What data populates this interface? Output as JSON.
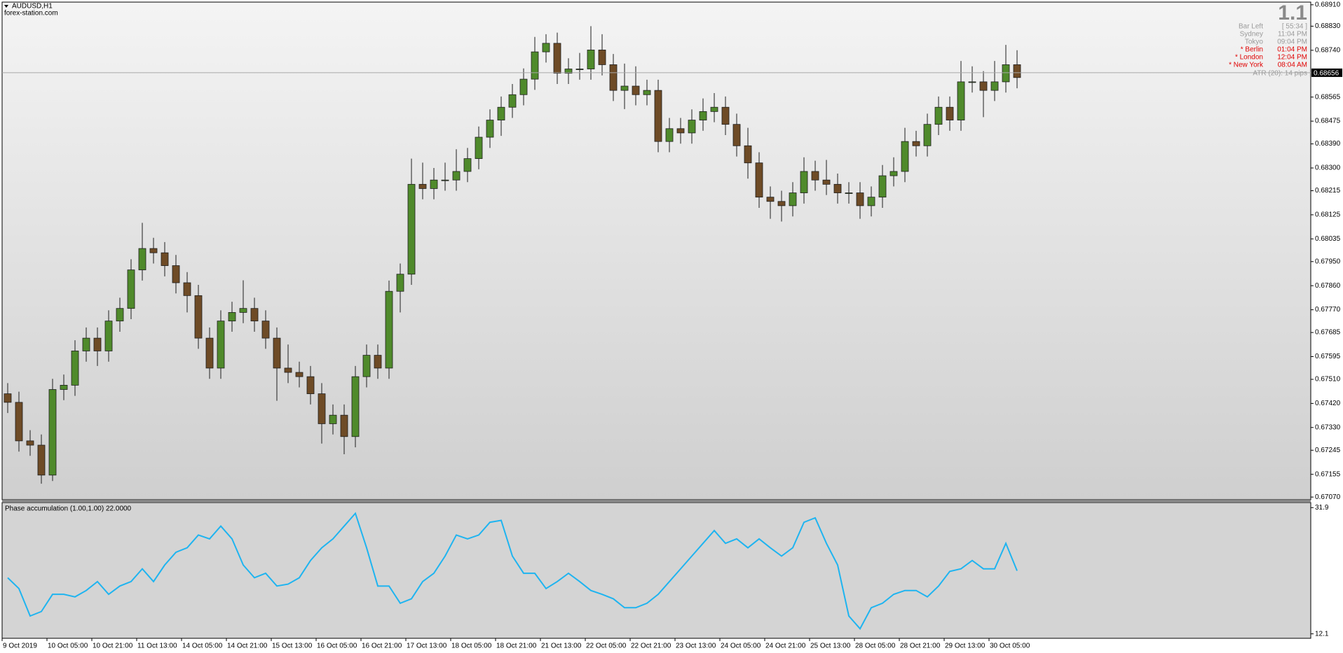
{
  "chart_data": [
    {
      "type": "candlestick",
      "title": "AUDUSD,H1",
      "subtitle": "forex-station.com",
      "categories": [
        "9 Oct 2019",
        null,
        null,
        null,
        "10 Oct 05:00",
        null,
        null,
        null,
        "10 Oct 21:00",
        null,
        null,
        null,
        "11 Oct 13:00",
        null,
        null,
        null,
        "14 Oct 05:00",
        null,
        null,
        null,
        "14 Oct 21:00",
        null,
        null,
        null,
        "15 Oct 13:00",
        null,
        null,
        null,
        "16 Oct 05:00",
        null,
        null,
        null,
        "16 Oct 21:00",
        null,
        null,
        null,
        "17 Oct 13:00",
        null,
        null,
        null,
        "18 Oct 05:00",
        null,
        null,
        null,
        "18 Oct 21:00",
        null,
        null,
        null,
        "21 Oct 13:00",
        null,
        null,
        null,
        "22 Oct 05:00",
        null,
        null,
        null,
        "22 Oct 21:00",
        null,
        null,
        null,
        "23 Oct 13:00",
        null,
        null,
        null,
        "24 Oct 05:00",
        null,
        null,
        null,
        "24 Oct 21:00",
        null,
        null,
        null,
        "25 Oct 13:00",
        null,
        null,
        null,
        "28 Oct 05:00",
        null,
        null,
        null,
        "28 Oct 21:00",
        null,
        null,
        null,
        "29 Oct 13:00",
        null,
        null,
        null,
        "30 Oct 05:00",
        null,
        null
      ],
      "open": [
        0.67456,
        0.67424,
        0.6728,
        0.67264,
        0.67152,
        0.67472,
        0.67488,
        0.67616,
        0.67664,
        0.67616,
        0.67728,
        0.67775,
        0.67919,
        0.67999,
        0.67983,
        0.67935,
        0.67871,
        0.67823,
        0.67664,
        0.67552,
        0.67728,
        0.6776,
        0.67775,
        0.67728,
        0.67664,
        0.67552,
        0.67536,
        0.6752,
        0.67456,
        0.67344,
        0.67376,
        0.67296,
        0.6752,
        0.676,
        0.67552,
        0.67839,
        0.67903,
        0.68239,
        0.68223,
        0.68255,
        0.68255,
        0.68287,
        0.68335,
        0.68415,
        0.68479,
        0.68527,
        0.68574,
        0.68632,
        0.68734,
        0.68766,
        0.68654,
        0.6867,
        0.6867,
        0.68741,
        0.68686,
        0.6859,
        0.68606,
        0.68574,
        0.6859,
        0.68399,
        0.68447,
        0.68431,
        0.68479,
        0.68511,
        0.68527,
        0.68463,
        0.68383,
        0.68319,
        0.68191,
        0.68175,
        0.68159,
        0.68207,
        0.68287,
        0.68255,
        0.68239,
        0.68207,
        0.68207,
        0.68159,
        0.68191,
        0.68271,
        0.68287,
        0.68399,
        0.68383,
        0.68463,
        0.68527,
        0.68479,
        0.68622,
        0.68622,
        0.6859,
        0.68622,
        0.68686
      ],
      "high": [
        0.67496,
        0.67464,
        0.6732,
        0.67304,
        0.67512,
        0.67528,
        0.67656,
        0.67704,
        0.67704,
        0.67768,
        0.67815,
        0.67959,
        0.68095,
        0.68039,
        0.68023,
        0.67975,
        0.67911,
        0.67863,
        0.67704,
        0.67768,
        0.678,
        0.6788,
        0.67815,
        0.67768,
        0.67704,
        0.6764,
        0.67576,
        0.6756,
        0.67496,
        0.67416,
        0.67416,
        0.6756,
        0.6764,
        0.6764,
        0.67879,
        0.67943,
        0.68335,
        0.6832,
        0.683,
        0.6832,
        0.6837,
        0.68375,
        0.68455,
        0.68519,
        0.68567,
        0.68614,
        0.68672,
        0.6879,
        0.688,
        0.68806,
        0.6871,
        0.6873,
        0.6883,
        0.688,
        0.68726,
        0.6869,
        0.6868,
        0.6863,
        0.6863,
        0.68487,
        0.68487,
        0.68519,
        0.6856,
        0.6858,
        0.68567,
        0.68503,
        0.6845,
        0.68359,
        0.68231,
        0.68215,
        0.68247,
        0.6834,
        0.68327,
        0.6833,
        0.68279,
        0.68247,
        0.68247,
        0.68231,
        0.68311,
        0.6834,
        0.6845,
        0.68439,
        0.68503,
        0.68567,
        0.68567,
        0.687,
        0.6868,
        0.68662,
        0.687,
        0.6876,
        0.6874
      ],
      "low": [
        0.67384,
        0.6724,
        0.67224,
        0.6712,
        0.6713,
        0.67432,
        0.67448,
        0.67576,
        0.6756,
        0.67576,
        0.67688,
        0.67735,
        0.67879,
        0.67943,
        0.67895,
        0.67831,
        0.6776,
        0.67624,
        0.67512,
        0.67512,
        0.67688,
        0.6772,
        0.67688,
        0.67624,
        0.6743,
        0.67496,
        0.6748,
        0.67416,
        0.6727,
        0.67304,
        0.6723,
        0.67256,
        0.6748,
        0.67512,
        0.67512,
        0.6776,
        0.67863,
        0.68183,
        0.68183,
        0.68215,
        0.68215,
        0.68247,
        0.68295,
        0.68375,
        0.6842,
        0.68487,
        0.68534,
        0.68592,
        0.68694,
        0.68614,
        0.68614,
        0.6863,
        0.6863,
        0.68646,
        0.6855,
        0.6852,
        0.68534,
        0.68534,
        0.68359,
        0.68359,
        0.68391,
        0.68391,
        0.68439,
        0.68471,
        0.68423,
        0.68343,
        0.6826,
        0.68151,
        0.6811,
        0.681,
        0.68119,
        0.68167,
        0.68215,
        0.68199,
        0.68167,
        0.68167,
        0.6811,
        0.68119,
        0.68151,
        0.68231,
        0.68247,
        0.68343,
        0.68343,
        0.68423,
        0.68439,
        0.68439,
        0.68582,
        0.6849,
        0.6855,
        0.68582,
        0.68598
      ],
      "close": [
        0.67424,
        0.6728,
        0.67264,
        0.67152,
        0.67472,
        0.67488,
        0.67616,
        0.67664,
        0.67616,
        0.67728,
        0.67775,
        0.67919,
        0.67999,
        0.67983,
        0.67935,
        0.67871,
        0.67823,
        0.67664,
        0.67552,
        0.67728,
        0.6776,
        0.67775,
        0.67728,
        0.67664,
        0.67552,
        0.67536,
        0.6752,
        0.67456,
        0.67344,
        0.67376,
        0.67296,
        0.6752,
        0.676,
        0.67552,
        0.67839,
        0.67903,
        0.68239,
        0.68223,
        0.68255,
        0.68255,
        0.68287,
        0.68335,
        0.68415,
        0.68479,
        0.68527,
        0.68574,
        0.68632,
        0.68734,
        0.68766,
        0.68654,
        0.6867,
        0.6867,
        0.68741,
        0.68686,
        0.6859,
        0.68606,
        0.68574,
        0.6859,
        0.68399,
        0.68447,
        0.68431,
        0.68479,
        0.68511,
        0.68527,
        0.68463,
        0.68383,
        0.68319,
        0.68191,
        0.68175,
        0.68159,
        0.68207,
        0.68287,
        0.68255,
        0.68239,
        0.68207,
        0.68207,
        0.68159,
        0.68191,
        0.68271,
        0.68287,
        0.68399,
        0.68383,
        0.68463,
        0.68527,
        0.68479,
        0.68622,
        0.68622,
        0.6859,
        0.68622,
        0.68686,
        0.68638
      ],
      "up_color": "#4f8a2b",
      "down_color": "#6e4b26",
      "wick_color": "#1e1e1e",
      "current_price": 0.68656,
      "ylim": [
        0.6706,
        0.6892
      ],
      "yticks": [
        {
          "value": 0.6891,
          "label": "0.68910"
        },
        {
          "value": 0.6883,
          "label": "0.68830"
        },
        {
          "value": 0.6874,
          "label": "0.68740"
        },
        0.68565,
        0.68475,
        {
          "value": 0.6839,
          "label": "0.68390"
        },
        {
          "value": 0.683,
          "label": "0.68300"
        },
        0.68215,
        0.68125,
        0.68035,
        {
          "value": 0.6795,
          "label": "0.67950"
        },
        {
          "value": 0.6786,
          "label": "0.67860"
        },
        {
          "value": 0.6777,
          "label": "0.67770"
        },
        0.67685,
        0.67595,
        {
          "value": 0.6751,
          "label": "0.67510"
        },
        {
          "value": 0.6742,
          "label": "0.67420"
        },
        {
          "value": 0.6733,
          "label": "0.67330"
        },
        0.67245,
        0.67155,
        {
          "value": 0.6707,
          "label": "0.67070"
        }
      ]
    },
    {
      "type": "line",
      "title": "Phase accumulation (1.00,1.00) 22.0000",
      "color": "#1eb4f0",
      "values": [
        20.9,
        19.2,
        14.9,
        15.6,
        18.3,
        18.3,
        17.9,
        18.9,
        20.3,
        18.3,
        19.6,
        20.3,
        22.3,
        20.3,
        22.9,
        24.9,
        25.6,
        27.6,
        27.0,
        29.0,
        27.0,
        22.9,
        20.9,
        21.6,
        19.6,
        19.9,
        20.9,
        23.6,
        25.6,
        27.0,
        29.0,
        31.0,
        25.6,
        19.6,
        19.6,
        16.9,
        17.6,
        20.3,
        21.6,
        24.3,
        27.6,
        27.0,
        27.6,
        29.6,
        29.9,
        24.3,
        21.6,
        21.6,
        19.2,
        20.3,
        21.6,
        20.3,
        18.9,
        18.3,
        17.6,
        16.2,
        16.2,
        16.9,
        18.3,
        20.3,
        22.3,
        24.3,
        26.3,
        28.3,
        26.3,
        27.0,
        25.6,
        27.0,
        25.6,
        24.3,
        25.6,
        29.6,
        30.3,
        26.3,
        22.9,
        14.9,
        12.9,
        16.2,
        16.9,
        18.3,
        18.9,
        18.9,
        17.9,
        19.6,
        21.9,
        22.3,
        23.6,
        22.3,
        22.3,
        26.3,
        22.0
      ],
      "ylim": [
        11.4,
        32.7
      ],
      "yticks": [
        31.9,
        12.1
      ]
    }
  ],
  "info_panel": {
    "big": "1.1",
    "rows": [
      {
        "label": "Bar Left",
        "value": "[ 55:34 ]",
        "color": "#9a9a9a"
      },
      {
        "label": "Sydney",
        "value": "11:04 PM",
        "color": "#9a9a9a"
      },
      {
        "label": "Tokyo",
        "value": "09:04 PM",
        "color": "#9a9a9a"
      },
      {
        "label": "* Berlin",
        "value": "01:04 PM",
        "color": "#e00000"
      },
      {
        "label": "* London",
        "value": "12:04 PM",
        "color": "#e00000"
      },
      {
        "label": "* New York",
        "value": "08:04 AM",
        "color": "#e00000"
      }
    ],
    "atr": "ATR (20): 14 pips"
  }
}
